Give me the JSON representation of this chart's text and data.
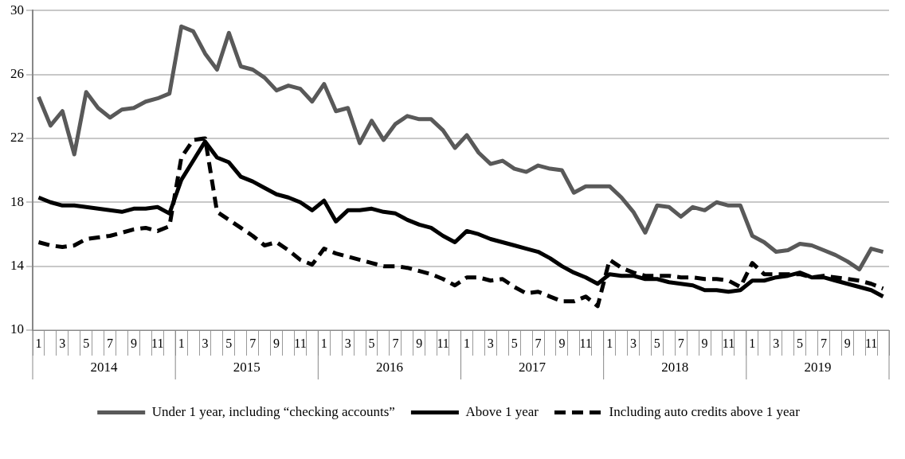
{
  "chart_data": {
    "type": "line",
    "categories": [
      "1",
      null,
      "3",
      null,
      "5",
      null,
      "7",
      null,
      "9",
      null,
      "11",
      null,
      "1",
      null,
      "3",
      null,
      "5",
      null,
      "7",
      null,
      "9",
      null,
      "11",
      null,
      "1",
      null,
      "3",
      null,
      "5",
      null,
      "7",
      null,
      "9",
      null,
      "11",
      null,
      "1",
      null,
      "3",
      null,
      "5",
      null,
      "7",
      null,
      "9",
      null,
      "11",
      null,
      "1",
      null,
      "3",
      null,
      "5",
      null,
      "7",
      null,
      "9",
      null,
      "11",
      null,
      "1",
      null,
      "3",
      null,
      "5",
      null,
      "7",
      null,
      "9",
      null,
      "11",
      null
    ],
    "annotations": [
      "2014",
      "2015",
      "2016",
      "2017",
      "2018",
      "2019"
    ],
    "series": [
      {
        "name": "Under 1 year, including “checking accounts”",
        "color": "#595959",
        "line_style": "solid",
        "values": [
          24.6,
          22.8,
          23.7,
          21.0,
          24.9,
          23.9,
          23.3,
          23.8,
          23.9,
          24.3,
          24.5,
          24.8,
          29.0,
          28.7,
          27.3,
          26.3,
          28.6,
          26.5,
          26.3,
          25.8,
          25.0,
          25.3,
          25.1,
          24.3,
          25.4,
          23.7,
          23.9,
          21.7,
          23.1,
          21.9,
          22.9,
          23.4,
          23.2,
          23.2,
          22.5,
          21.4,
          22.2,
          21.1,
          20.4,
          20.6,
          20.1,
          19.9,
          20.3,
          20.1,
          20.0,
          18.6,
          19.0,
          19.0,
          19.0,
          18.3,
          17.4,
          16.1,
          17.8,
          17.7,
          17.1,
          17.7,
          17.5,
          18.0,
          17.8,
          17.8,
          15.9,
          15.5,
          14.9,
          15.0,
          15.4,
          15.3,
          15.0,
          14.7,
          14.3,
          13.8,
          15.1,
          14.9
        ]
      },
      {
        "name": "Above 1 year",
        "color": "#000000",
        "line_style": "solid",
        "values": [
          18.3,
          18.0,
          17.8,
          17.8,
          17.7,
          17.6,
          17.5,
          17.4,
          17.6,
          17.6,
          17.7,
          17.3,
          19.4,
          20.6,
          21.8,
          20.8,
          20.5,
          19.6,
          19.3,
          18.9,
          18.5,
          18.3,
          18.0,
          17.5,
          18.1,
          16.8,
          17.5,
          17.5,
          17.6,
          17.4,
          17.3,
          16.9,
          16.6,
          16.4,
          15.9,
          15.5,
          16.2,
          16.0,
          15.7,
          15.5,
          15.3,
          15.1,
          14.9,
          14.5,
          14.0,
          13.6,
          13.3,
          12.9,
          13.5,
          13.4,
          13.4,
          13.2,
          13.2,
          13.0,
          12.9,
          12.8,
          12.5,
          12.5,
          12.4,
          12.5,
          13.1,
          13.1,
          13.3,
          13.4,
          13.6,
          13.3,
          13.3,
          13.1,
          12.9,
          12.7,
          12.5,
          12.1
        ]
      },
      {
        "name": "Including auto credits above 1 year",
        "color": "#000000",
        "line_style": "dashed",
        "values": [
          15.5,
          15.3,
          15.2,
          15.3,
          15.7,
          15.8,
          15.9,
          16.1,
          16.3,
          16.4,
          16.2,
          16.5,
          20.8,
          21.9,
          22.0,
          17.4,
          16.9,
          16.4,
          15.9,
          15.3,
          15.5,
          15.0,
          14.4,
          14.1,
          15.1,
          14.8,
          14.6,
          14.4,
          14.2,
          14.0,
          14.0,
          13.9,
          13.7,
          13.5,
          13.2,
          12.8,
          13.3,
          13.3,
          13.1,
          13.2,
          12.7,
          12.3,
          12.4,
          12.1,
          11.8,
          11.8,
          12.1,
          11.5,
          14.4,
          13.9,
          13.6,
          13.4,
          13.4,
          13.4,
          13.3,
          13.3,
          13.2,
          13.2,
          13.1,
          12.7,
          14.2,
          13.5,
          13.5,
          13.5,
          13.5,
          13.3,
          13.4,
          13.3,
          13.2,
          13.1,
          12.9,
          12.6
        ]
      }
    ],
    "ylim": [
      10,
      30
    ],
    "yticks": [
      10,
      14,
      18,
      22,
      26,
      30
    ],
    "grid": "y",
    "legend": "bottom",
    "marker": "none"
  }
}
